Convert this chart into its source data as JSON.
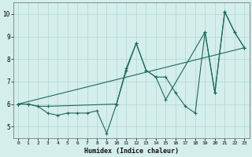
{
  "xlabel": "Humidex (Indice chaleur)",
  "xlim": [
    -0.5,
    23.5
  ],
  "ylim": [
    4.5,
    10.5
  ],
  "yticks": [
    5,
    6,
    7,
    8,
    9,
    10
  ],
  "xticks": [
    0,
    1,
    2,
    3,
    4,
    5,
    6,
    7,
    8,
    9,
    10,
    11,
    12,
    13,
    14,
    15,
    16,
    17,
    18,
    19,
    20,
    21,
    22,
    23
  ],
  "bg_color": "#d4eeeb",
  "grid_color": "#b8d8d4",
  "line_color": "#1a6b5a",
  "line1_x": [
    0,
    1,
    2,
    3,
    4,
    5,
    6,
    7,
    8,
    9,
    10,
    11,
    12,
    13,
    14,
    15,
    16,
    17,
    18,
    19,
    20,
    21,
    22,
    23
  ],
  "line1_y": [
    6.0,
    6.0,
    5.9,
    5.6,
    5.5,
    5.6,
    5.6,
    5.6,
    5.7,
    4.7,
    6.0,
    7.5,
    8.7,
    7.5,
    7.2,
    7.2,
    6.5,
    5.9,
    5.6,
    9.2,
    6.5,
    10.1,
    9.2,
    8.5
  ],
  "line2_x": [
    0,
    1,
    2,
    3,
    10,
    11,
    12,
    13,
    14,
    15,
    19,
    20,
    21,
    22,
    23
  ],
  "line2_y": [
    6.0,
    6.0,
    5.9,
    5.9,
    6.0,
    7.6,
    8.7,
    7.5,
    7.2,
    6.2,
    9.2,
    6.5,
    10.1,
    9.2,
    8.5
  ],
  "line3_x": [
    0,
    23
  ],
  "line3_y": [
    6.0,
    8.5
  ]
}
